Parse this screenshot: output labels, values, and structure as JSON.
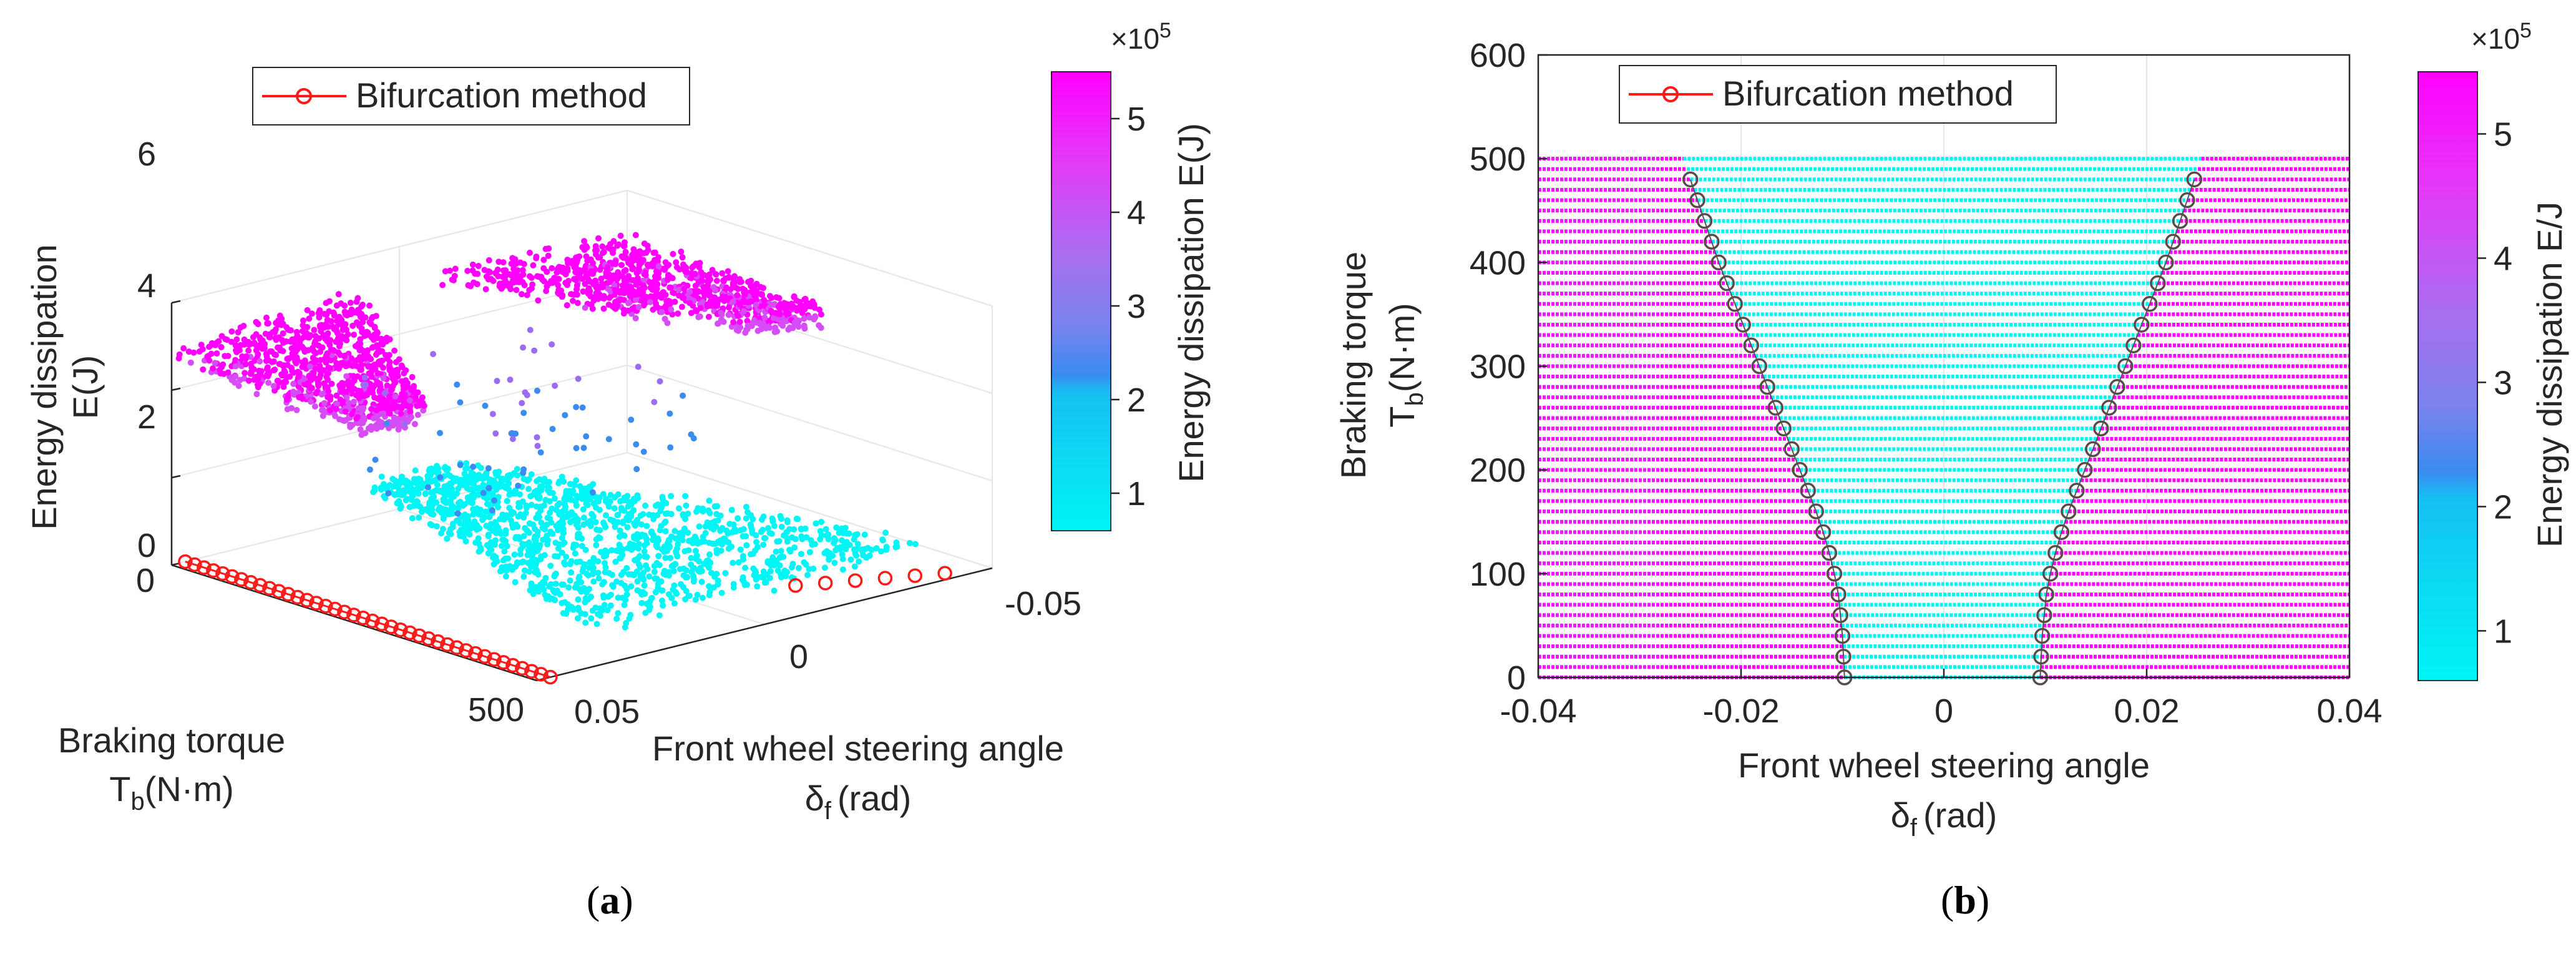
{
  "colors": {
    "cyan": "#00f5f5",
    "magenta": "#ff00ff",
    "purple": "#9c6cf0",
    "blue": "#3a8cf0",
    "marker": "#ff1a1a",
    "axis": "#262626",
    "grid": "#e6e6e6"
  },
  "chart_data": [
    {
      "id": "a",
      "type": "scatter3d",
      "title": "",
      "zlabel_line1": "Energy dissipation",
      "zlabel_line2": "E(J)",
      "ylabel_line1": "Braking torque",
      "ylabel_main": "T",
      "ylabel_sub": "b",
      "ylabel_unit": "(N·m)",
      "xlabel_line1": "Front wheel steering angle",
      "xlabel_main": "δ",
      "xlabel_sub": "f",
      "xlabel_unit": "(rad)",
      "z_ticks": [
        "0",
        "2",
        "4",
        "6"
      ],
      "z_range": [
        0,
        6
      ],
      "x_ticks": [
        "0.05",
        "0",
        "-0.05"
      ],
      "y_ticks": [
        "0",
        "500"
      ],
      "legend": "Bifurcation method",
      "colorbar": {
        "label": "Energy dissipation E(J)",
        "ticks": [
          "1",
          "2",
          "3",
          "4",
          "5"
        ],
        "exponent_base": "×10",
        "exponent_power": "5",
        "range": [
          0.6,
          5.5
        ]
      },
      "surfaces": {
        "low_energy_level": 0.7,
        "high_energy_level": 5.0
      },
      "bifurcation_torque_points": 40
    },
    {
      "id": "b",
      "type": "scatter",
      "xlabel_line1": "Front wheel steering angle",
      "xlabel_main": "δ",
      "xlabel_sub": "f",
      "xlabel_unit": "(rad)",
      "ylabel_line1": "Braking torque",
      "ylabel_main": "T",
      "ylabel_sub": "b",
      "ylabel_unit": "(N·m)",
      "xlim": [
        -0.04,
        0.04
      ],
      "ylim": [
        0,
        600
      ],
      "x_ticks": [
        "-0.04",
        "-0.02",
        "0",
        "0.02",
        "0.04"
      ],
      "x_tick_values": [
        -0.04,
        -0.02,
        0,
        0.02,
        0.04
      ],
      "y_ticks": [
        "0",
        "100",
        "200",
        "300",
        "400",
        "500",
        "600"
      ],
      "y_tick_values": [
        0,
        100,
        200,
        300,
        400,
        500,
        600
      ],
      "legend": "Bifurcation method",
      "colorbar": {
        "label": "Energy dissipation E/J",
        "ticks": [
          "1",
          "2",
          "3",
          "4",
          "5"
        ],
        "exponent_base": "×10",
        "exponent_power": "5",
        "range": [
          0.6,
          5.5
        ]
      },
      "grid_torque_max": 505,
      "grid_torque_step": 10,
      "bifurcation": {
        "torque": [
          0,
          20,
          40,
          60,
          80,
          100,
          120,
          140,
          160,
          180,
          200,
          220,
          240,
          260,
          280,
          300,
          320,
          340,
          360,
          380,
          400,
          420,
          440,
          460,
          480
        ],
        "delta_left": [
          -0.0098,
          -0.0099,
          -0.01,
          -0.0102,
          -0.0104,
          -0.0108,
          -0.0113,
          -0.0119,
          -0.0126,
          -0.0134,
          -0.0142,
          -0.015,
          -0.0158,
          -0.0166,
          -0.0174,
          -0.0182,
          -0.019,
          -0.0198,
          -0.0206,
          -0.0214,
          -0.0222,
          -0.0229,
          -0.0236,
          -0.0243,
          -0.025
        ],
        "delta_right": [
          0.0095,
          0.0096,
          0.0097,
          0.0099,
          0.0101,
          0.0105,
          0.011,
          0.0116,
          0.0123,
          0.0131,
          0.0139,
          0.0147,
          0.0155,
          0.0163,
          0.0171,
          0.0179,
          0.0187,
          0.0195,
          0.0203,
          0.0211,
          0.0219,
          0.0226,
          0.0233,
          0.024,
          0.0247
        ]
      }
    }
  ],
  "captions": {
    "a_open": "(",
    "a_letter": "a",
    "a_close": ")",
    "b_open": "(",
    "b_letter": "b",
    "b_close": ")"
  }
}
